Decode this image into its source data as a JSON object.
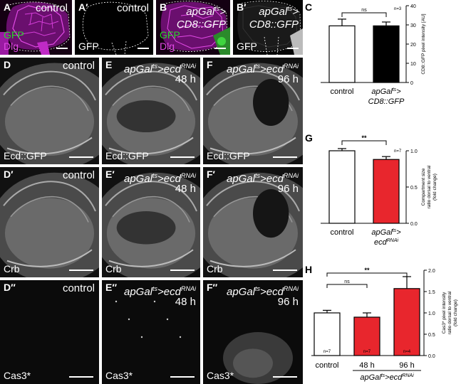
{
  "top_row": {
    "A": {
      "label": "A",
      "cond": "control",
      "stain1": "GFP",
      "stain2": "Dlg"
    },
    "A2": {
      "label": "A′",
      "cond": "control",
      "stain1": "GFP"
    },
    "B": {
      "label": "B",
      "cond_line1": "apGal",
      "cond_sup": "ts",
      "cond_line1_end": ">",
      "cond_line2": "CD8::GFP",
      "stain1": "GFP",
      "stain2": "Dlg"
    },
    "B2": {
      "label": "B′",
      "cond_line1": "apGal",
      "cond_sup": "ts",
      "cond_line1_end": ">",
      "cond_line2": "CD8::GFP",
      "stain1": "GFP"
    }
  },
  "grid": {
    "rows": [
      {
        "stain": "Ecd::GFP",
        "labels": [
          "D",
          "E",
          "F"
        ]
      },
      {
        "stain": "Crb",
        "labels": [
          "D′",
          "E′",
          "F′"
        ]
      },
      {
        "stain": "Cas3*",
        "labels": [
          "D″",
          "E″",
          "F″"
        ]
      }
    ],
    "cols": [
      {
        "cond": "control",
        "time": ""
      },
      {
        "cond_main": "apGal",
        "cond_sup": "ts",
        "cond_mid": ">ecd",
        "cond_sup2": "RNAi",
        "time": "48 h"
      },
      {
        "cond_main": "apGal",
        "cond_sup": "ts",
        "cond_mid": ">ecd",
        "cond_sup2": "RNAi",
        "time": "96 h"
      }
    ]
  },
  "chart_data": [
    {
      "panel": "C",
      "type": "bar",
      "categories": [
        "control",
        "apGal^ts> CD8::GFP"
      ],
      "cat_labels": [
        [
          "control"
        ],
        [
          "apGal",
          "ts",
          "> CD8::GFP"
        ]
      ],
      "values": [
        29.5,
        29.5
      ],
      "errors": [
        3.5,
        2
      ],
      "colors": [
        "#ffffff",
        "#000000"
      ],
      "ylabel": "CD8::GFP pixel intensity [AU]",
      "ylim": [
        0,
        40
      ],
      "yticks": [
        0,
        10,
        20,
        30,
        40
      ],
      "significance": "ns",
      "n_note": "n=3"
    },
    {
      "panel": "G",
      "type": "bar",
      "categories": [
        "control",
        "apGal^ts> ecd^RNAi"
      ],
      "values": [
        1.0,
        0.88
      ],
      "errors": [
        0.03,
        0.04
      ],
      "colors": [
        "#ffffff",
        "#e8262d"
      ],
      "ylabel": "Compartment size ratio dorsal to ventral (fold change)",
      "ylabel_lines": [
        "Compartment size",
        "ratio dorsal to ventral",
        "(fold change)"
      ],
      "ylim": [
        0,
        1
      ],
      "yticks": [
        "0.0",
        "0.5",
        "1.0"
      ],
      "significance": "**",
      "n_note": "n=7"
    },
    {
      "panel": "H",
      "type": "bar",
      "categories": [
        "control",
        "48 h",
        "96 h"
      ],
      "values": [
        1.0,
        0.9,
        1.57
      ],
      "errors": [
        0.06,
        0.1,
        0.28
      ],
      "colors": [
        "#ffffff",
        "#e8262d",
        "#e8262d"
      ],
      "n_labels": [
        "n=7",
        "n=7",
        "n=4"
      ],
      "ylabel": "Cas3* pixel intensity ratio dorsal to ventral (fold change)",
      "ylabel_lines": [
        "Cas3* pixel intensity",
        "ratio dorsal to ventral",
        "(fold change)"
      ],
      "ylim": [
        0,
        2.0
      ],
      "yticks": [
        "0.0",
        "0.5",
        "1.0",
        "1.5",
        "2.0"
      ],
      "significance": [
        {
          "pair": [
            0,
            1
          ],
          "label": "ns"
        },
        {
          "pair": [
            0,
            2
          ],
          "label": "**"
        }
      ],
      "group_label": "apGal^ts>ecd^RNAi"
    }
  ],
  "panel_letters": {
    "C": "C",
    "G": "G",
    "H": "H"
  },
  "chart_text": {
    "C_cat1": "control",
    "C_cat2a": "apGal",
    "C_cat2sup": "ts",
    "C_cat2b": ">",
    "C_cat2c": "CD8::GFP",
    "G_cat1": "control",
    "G_cat2a": "apGal",
    "G_cat2sup": "ts",
    "G_cat2b": ">",
    "G_cat2c": "ecd",
    "G_cat2sup2": "RNAi",
    "H_cat1": "control",
    "H_cat2": "48 h",
    "H_cat3": "96 h",
    "H_group_a": "apGal",
    "H_group_sup": "ts",
    "H_group_b": ">ecd",
    "H_group_sup2": "RNAi"
  }
}
